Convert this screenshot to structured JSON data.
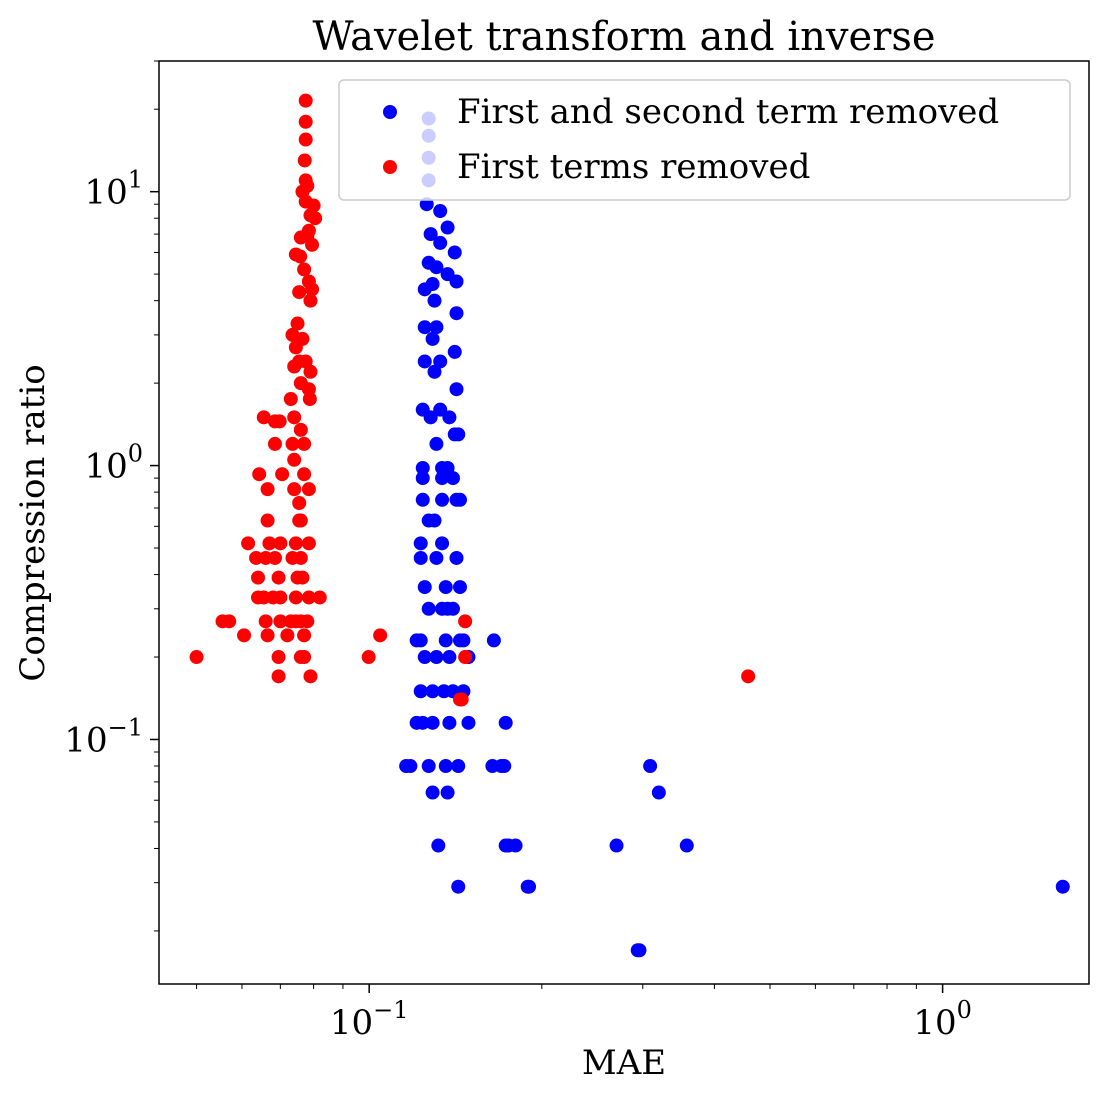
{
  "chart_data": {
    "type": "scatter",
    "title": "Wavelet transform and inverse",
    "xlabel": "MAE",
    "ylabel": "Compression ratio",
    "xscale": "log",
    "yscale": "log",
    "xlim": [
      0.043,
      1.8
    ],
    "ylim": [
      0.0128,
      30
    ],
    "xticks": [
      {
        "value": 0.1,
        "base": "10",
        "exp": "−1"
      },
      {
        "value": 1,
        "base": "10",
        "exp": "0"
      }
    ],
    "yticks": [
      {
        "value": 0.1,
        "base": "10",
        "exp": "−1"
      },
      {
        "value": 1,
        "base": "10",
        "exp": "0"
      },
      {
        "value": 10,
        "base": "10",
        "exp": "1"
      }
    ],
    "legend_position": "top-right",
    "series": [
      {
        "name": "First and second term removed",
        "color": "#0000ff",
        "points": [
          [
            0.127,
            18.5
          ],
          [
            0.127,
            16.0
          ],
          [
            0.127,
            13.3
          ],
          [
            0.127,
            11.0
          ],
          [
            0.126,
            9.0
          ],
          [
            0.133,
            8.5
          ],
          [
            0.128,
            7.0
          ],
          [
            0.137,
            7.4
          ],
          [
            0.133,
            6.5
          ],
          [
            0.141,
            6.0
          ],
          [
            0.127,
            5.5
          ],
          [
            0.131,
            5.3
          ],
          [
            0.137,
            5.0
          ],
          [
            0.125,
            4.4
          ],
          [
            0.129,
            4.6
          ],
          [
            0.142,
            4.7
          ],
          [
            0.13,
            4.0
          ],
          [
            0.142,
            3.6
          ],
          [
            0.125,
            3.2
          ],
          [
            0.131,
            3.2
          ],
          [
            0.129,
            2.9
          ],
          [
            0.141,
            2.6
          ],
          [
            0.125,
            2.4
          ],
          [
            0.133,
            2.4
          ],
          [
            0.13,
            2.2
          ],
          [
            0.142,
            1.9
          ],
          [
            0.124,
            1.6
          ],
          [
            0.133,
            1.6
          ],
          [
            0.128,
            1.5
          ],
          [
            0.138,
            1.5
          ],
          [
            0.141,
            1.3
          ],
          [
            0.143,
            1.3
          ],
          [
            0.131,
            1.2
          ],
          [
            0.124,
            0.98
          ],
          [
            0.134,
            0.98
          ],
          [
            0.137,
            0.98
          ],
          [
            0.124,
            0.9
          ],
          [
            0.134,
            0.9
          ],
          [
            0.14,
            0.9
          ],
          [
            0.124,
            0.75
          ],
          [
            0.134,
            0.75
          ],
          [
            0.142,
            0.75
          ],
          [
            0.144,
            0.75
          ],
          [
            0.127,
            0.63
          ],
          [
            0.13,
            0.63
          ],
          [
            0.123,
            0.52
          ],
          [
            0.134,
            0.52
          ],
          [
            0.123,
            0.46
          ],
          [
            0.131,
            0.46
          ],
          [
            0.142,
            0.46
          ],
          [
            0.125,
            0.36
          ],
          [
            0.136,
            0.36
          ],
          [
            0.144,
            0.36
          ],
          [
            0.127,
            0.3
          ],
          [
            0.134,
            0.3
          ],
          [
            0.137,
            0.3
          ],
          [
            0.14,
            0.3
          ],
          [
            0.121,
            0.23
          ],
          [
            0.123,
            0.23
          ],
          [
            0.136,
            0.23
          ],
          [
            0.144,
            0.23
          ],
          [
            0.146,
            0.23
          ],
          [
            0.165,
            0.23
          ],
          [
            0.125,
            0.2
          ],
          [
            0.131,
            0.2
          ],
          [
            0.138,
            0.2
          ],
          [
            0.149,
            0.2
          ],
          [
            0.123,
            0.15
          ],
          [
            0.129,
            0.15
          ],
          [
            0.135,
            0.15
          ],
          [
            0.14,
            0.15
          ],
          [
            0.146,
            0.15
          ],
          [
            0.121,
            0.115
          ],
          [
            0.124,
            0.115
          ],
          [
            0.129,
            0.115
          ],
          [
            0.138,
            0.115
          ],
          [
            0.149,
            0.115
          ],
          [
            0.173,
            0.115
          ],
          [
            0.116,
            0.08
          ],
          [
            0.118,
            0.08
          ],
          [
            0.127,
            0.08
          ],
          [
            0.136,
            0.08
          ],
          [
            0.143,
            0.08
          ],
          [
            0.164,
            0.08
          ],
          [
            0.17,
            0.08
          ],
          [
            0.172,
            0.08
          ],
          [
            0.309,
            0.08
          ],
          [
            0.129,
            0.064
          ],
          [
            0.137,
            0.064
          ],
          [
            0.32,
            0.064
          ],
          [
            0.132,
            0.041
          ],
          [
            0.173,
            0.041
          ],
          [
            0.175,
            0.041
          ],
          [
            0.18,
            0.041
          ],
          [
            0.27,
            0.041
          ],
          [
            0.358,
            0.041
          ],
          [
            0.143,
            0.029
          ],
          [
            0.189,
            0.029
          ],
          [
            0.19,
            0.029
          ],
          [
            1.62,
            0.029
          ],
          [
            0.294,
            0.017
          ],
          [
            0.296,
            0.017
          ]
        ]
      },
      {
        "name": "First terms removed",
        "color": "#ff0000",
        "points": [
          [
            0.0775,
            21.5
          ],
          [
            0.0775,
            18.0
          ],
          [
            0.0775,
            15.5
          ],
          [
            0.0772,
            13.0
          ],
          [
            0.0775,
            11.0
          ],
          [
            0.0765,
            10.0
          ],
          [
            0.078,
            10.5
          ],
          [
            0.0775,
            9.2
          ],
          [
            0.08,
            8.9
          ],
          [
            0.079,
            8.2
          ],
          [
            0.0805,
            8.0
          ],
          [
            0.0785,
            7.2
          ],
          [
            0.076,
            6.8
          ],
          [
            0.078,
            6.9
          ],
          [
            0.0795,
            6.4
          ],
          [
            0.0745,
            5.9
          ],
          [
            0.0758,
            5.8
          ],
          [
            0.077,
            5.2
          ],
          [
            0.0785,
            4.7
          ],
          [
            0.0755,
            4.3
          ],
          [
            0.0795,
            4.4
          ],
          [
            0.079,
            4.0
          ],
          [
            0.075,
            3.3
          ],
          [
            0.0735,
            3.0
          ],
          [
            0.0765,
            2.9
          ],
          [
            0.0745,
            2.7
          ],
          [
            0.0755,
            2.4
          ],
          [
            0.074,
            2.3
          ],
          [
            0.0775,
            2.4
          ],
          [
            0.079,
            2.2
          ],
          [
            0.076,
            2.0
          ],
          [
            0.0785,
            1.9
          ],
          [
            0.073,
            1.75
          ],
          [
            0.0788,
            1.75
          ],
          [
            0.074,
            1.5
          ],
          [
            0.0655,
            1.5
          ],
          [
            0.0685,
            1.45
          ],
          [
            0.0698,
            1.45
          ],
          [
            0.076,
            1.35
          ],
          [
            0.0735,
            1.2
          ],
          [
            0.0685,
            1.2
          ],
          [
            0.077,
            1.2
          ],
          [
            0.074,
            1.05
          ],
          [
            0.0643,
            0.93
          ],
          [
            0.0705,
            0.93
          ],
          [
            0.077,
            0.93
          ],
          [
            0.0665,
            0.82
          ],
          [
            0.074,
            0.82
          ],
          [
            0.0785,
            0.82
          ],
          [
            0.0755,
            0.73
          ],
          [
            0.076,
            0.63
          ],
          [
            0.0665,
            0.63
          ],
          [
            0.0755,
            0.63
          ],
          [
            0.0615,
            0.52
          ],
          [
            0.07,
            0.52
          ],
          [
            0.067,
            0.52
          ],
          [
            0.0745,
            0.52
          ],
          [
            0.0785,
            0.52
          ],
          [
            0.0635,
            0.46
          ],
          [
            0.066,
            0.46
          ],
          [
            0.0685,
            0.46
          ],
          [
            0.0735,
            0.46
          ],
          [
            0.076,
            0.46
          ],
          [
            0.064,
            0.39
          ],
          [
            0.0695,
            0.39
          ],
          [
            0.075,
            0.39
          ],
          [
            0.0765,
            0.39
          ],
          [
            0.064,
            0.33
          ],
          [
            0.0655,
            0.33
          ],
          [
            0.068,
            0.33
          ],
          [
            0.07,
            0.33
          ],
          [
            0.0745,
            0.33
          ],
          [
            0.0785,
            0.33
          ],
          [
            0.082,
            0.33
          ],
          [
            0.0555,
            0.27
          ],
          [
            0.057,
            0.27
          ],
          [
            0.066,
            0.27
          ],
          [
            0.07,
            0.27
          ],
          [
            0.073,
            0.27
          ],
          [
            0.0745,
            0.27
          ],
          [
            0.076,
            0.27
          ],
          [
            0.078,
            0.27
          ],
          [
            0.147,
            0.27
          ],
          [
            0.0605,
            0.24
          ],
          [
            0.0665,
            0.24
          ],
          [
            0.072,
            0.24
          ],
          [
            0.077,
            0.24
          ],
          [
            0.1045,
            0.24
          ],
          [
            0.05,
            0.2
          ],
          [
            0.0695,
            0.2
          ],
          [
            0.076,
            0.2
          ],
          [
            0.077,
            0.2
          ],
          [
            0.0998,
            0.2
          ],
          [
            0.147,
            0.2
          ],
          [
            0.0695,
            0.17
          ],
          [
            0.079,
            0.17
          ],
          [
            0.458,
            0.17
          ],
          [
            0.144,
            0.14
          ],
          [
            0.145,
            0.14
          ]
        ]
      }
    ]
  }
}
